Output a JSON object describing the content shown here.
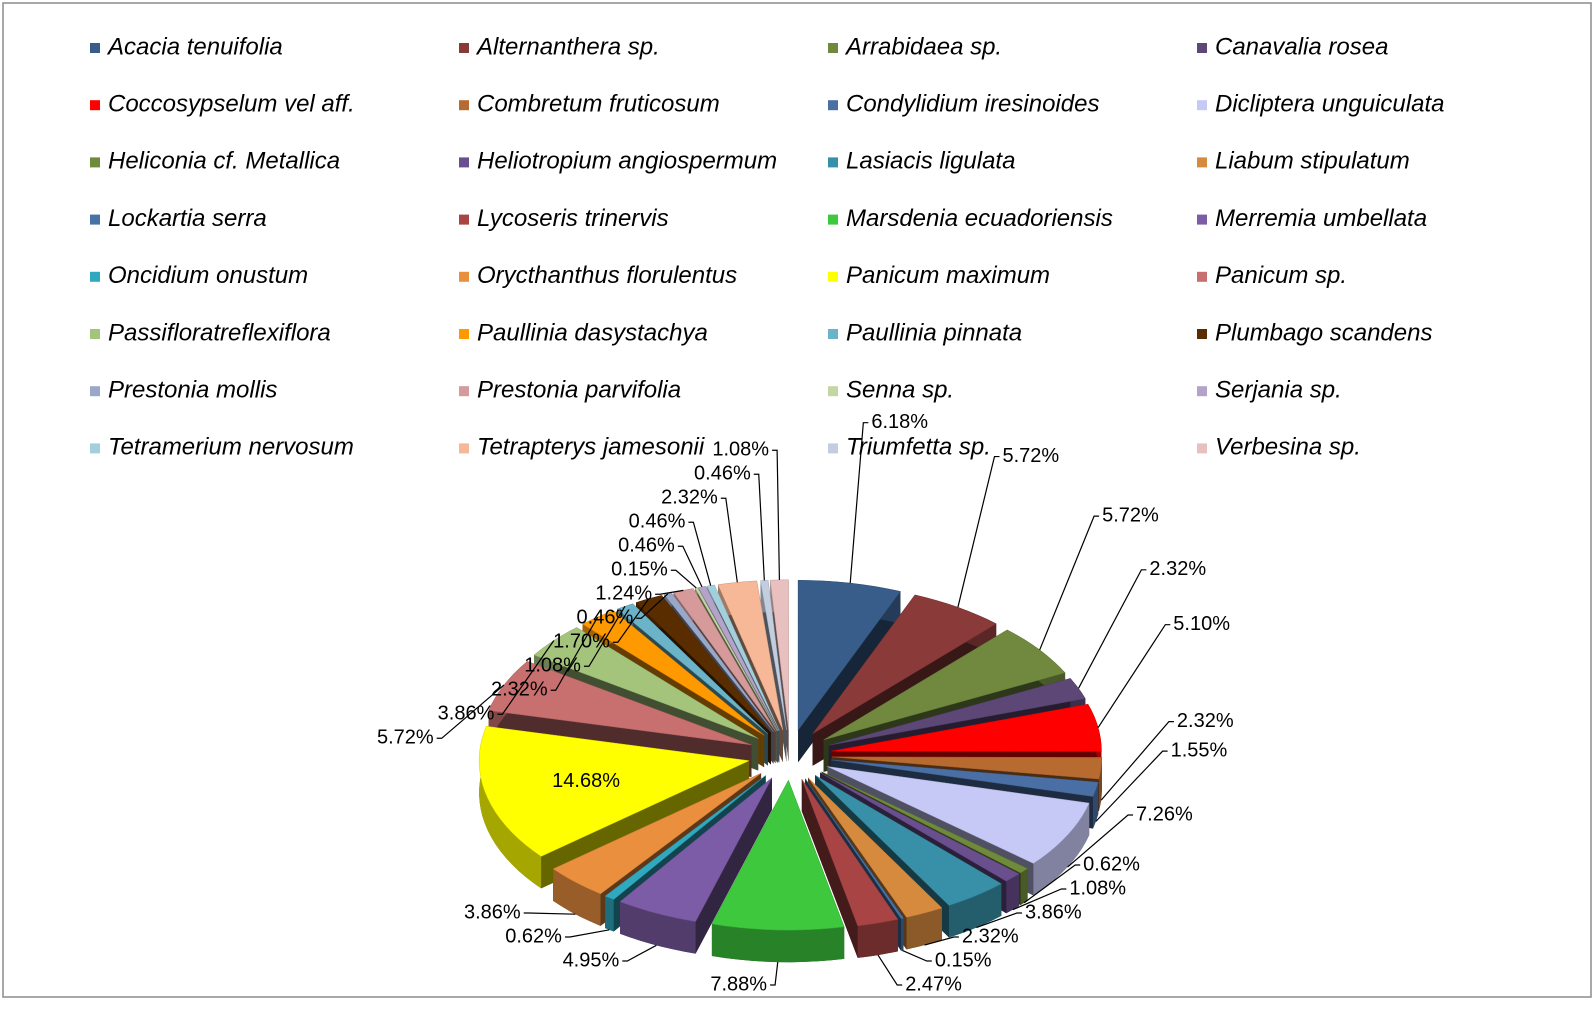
{
  "chart_data": {
    "type": "pie",
    "categories": [
      "Acacia tenuifolia",
      "Alternanthera sp.",
      "Arrabidaea sp.",
      "Canavalia rosea",
      "Coccosypselum vel aff.",
      "Combretum fruticosum",
      "Condylidium iresinoides",
      "Dicliptera unguiculata",
      "Heliconia cf. Metallica",
      "Heliotropium angiospermum",
      "Lasiacis ligulata",
      "Liabum stipulatum",
      "Lockartia serra",
      "Lycoseris trinervis",
      "Marsdenia ecuadoriensis",
      "Merremia umbellata",
      "Oncidium onustum",
      "Orycthanthus florulentus",
      "Panicum maximum",
      "Panicum sp.",
      "Passifloratreflexiflora",
      "Paullinia dasystachya",
      "Paullinia pinnata",
      "Plumbago scandens",
      "Prestonia mollis",
      "Prestonia parvifolia",
      "Senna sp.",
      "Serjania sp.",
      "Tetramerium nervosum",
      "Tetrapterys jamesonii",
      "Triumfetta sp.",
      "Verbesina sp."
    ],
    "values": [
      6.18,
      5.72,
      5.72,
      2.32,
      5.1,
      2.32,
      1.55,
      7.26,
      0.62,
      1.08,
      3.86,
      2.32,
      0.15,
      2.47,
      7.88,
      4.95,
      0.62,
      3.86,
      14.68,
      5.72,
      3.86,
      2.32,
      1.08,
      1.7,
      0.46,
      1.24,
      0.15,
      0.46,
      0.46,
      2.32,
      0.46,
      1.08
    ],
    "value_labels": [
      "6.18%",
      "5.72%",
      "5.72%",
      "2.32%",
      "5.10%",
      "2.32%",
      "1.55%",
      "7.26%",
      "0.62%",
      "1.08%",
      "3.86%",
      "2.32%",
      "0.15%",
      "2.47%",
      "7.88%",
      "4.95%",
      "0.62%",
      "3.86%",
      "14.68%",
      "5.72%",
      "3.86%",
      "2.32%",
      "1.08%",
      "1.70%",
      "0.46%",
      "1.24%",
      "0.15%",
      "0.46%",
      "0.46%",
      "2.32%",
      "0.46%",
      "1.08%"
    ],
    "colors": [
      "#385d8a",
      "#8b3a3a",
      "#71893f",
      "#5c4776",
      "#ff0000",
      "#b86b30",
      "#4a6fa5",
      "#c6c8f5",
      "#6f8a3a",
      "#6a4f8f",
      "#3790a8",
      "#d68a3e",
      "#4572a7",
      "#a84444",
      "#3dc83d",
      "#7c5ca6",
      "#30a9c0",
      "#ea8f3e",
      "#ffff00",
      "#c86f6f",
      "#a3c47a",
      "#ff9900",
      "#6ab3c9",
      "#5a2d00",
      "#9aa8c8",
      "#d69a9a",
      "#c3d6a3",
      "#b3a3c9",
      "#a3cfdc",
      "#f6b896",
      "#c2cee0",
      "#e8c0c0"
    ],
    "legend": "top"
  }
}
